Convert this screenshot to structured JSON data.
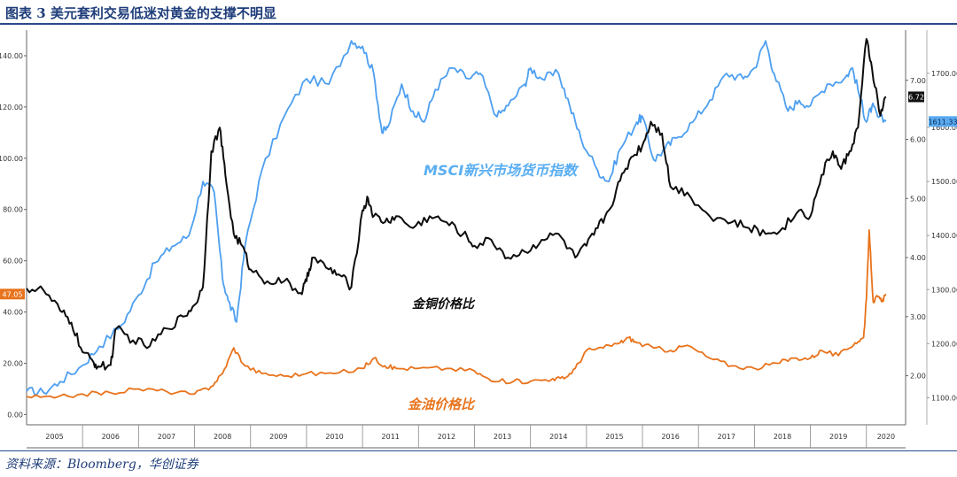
{
  "header": {
    "title": "图表 3 美元套利交易低迷对黄金的支撑不明显"
  },
  "footer": {
    "source": "资料来源：Bloomberg，华创证券"
  },
  "chart_data": {
    "type": "line",
    "title": "图表 3 美元套利交易低迷对黄金的支撑不明显",
    "xlabel": "",
    "ylabel": "",
    "x_ticks": [
      "2005",
      "2006",
      "2007",
      "2008",
      "2009",
      "2010",
      "2011",
      "2012",
      "2013",
      "2014",
      "2015",
      "2016",
      "2017",
      "2018",
      "2019",
      "2020"
    ],
    "xlim": [
      2005.0,
      2020.7
    ],
    "grid": false,
    "y_left": {
      "lim": [
        -4,
        150
      ],
      "ticks": [
        "0.00",
        "20.00",
        "40.00",
        "60.00",
        "80.00",
        "100.00",
        "120.00",
        "140.00"
      ],
      "values": [
        0,
        20,
        40,
        60,
        80,
        100,
        120,
        140
      ]
    },
    "y_right_inner": {
      "lim": [
        1.17,
        7.85
      ],
      "ticks": [
        "2.00",
        "3.00",
        "4.00",
        "5.00",
        "6.00",
        "7.00"
      ],
      "values": [
        2,
        3,
        4,
        5,
        6,
        7
      ]
    },
    "y_right_outer": {
      "lim": [
        1050,
        1780
      ],
      "ticks": [
        "1100.00",
        "1200.00",
        "1300.00",
        "1400.00",
        "1500.00",
        "1600.00",
        "1700.00"
      ],
      "values": [
        1100,
        1200,
        1300,
        1400,
        1500,
        1600,
        1700
      ]
    },
    "last_value_flags": [
      {
        "series": "金油价格比",
        "text": "47.05",
        "color": "#e8731c",
        "side": "left"
      },
      {
        "series": "金铜价格比",
        "text": "6.72",
        "color": "#111111",
        "side": "right"
      },
      {
        "series": "MSCI新兴市场货币指数",
        "text": "1611.33",
        "color": "#5aaaf0",
        "side": "right"
      }
    ],
    "series": [
      {
        "name": "MSCI新兴市场货币指数",
        "label": "MSCI新兴市场货币指数",
        "axis": "y_right_outer",
        "color": "#4d9ff0",
        "label_color": "#5aaef2",
        "x": [
          2005.0,
          2005.3,
          2005.6,
          2006.0,
          2006.3,
          2006.7,
          2007.0,
          2007.3,
          2007.6,
          2007.9,
          2008.15,
          2008.35,
          2008.5,
          2008.6,
          2008.75,
          2008.9,
          2009.2,
          2009.6,
          2010.0,
          2010.4,
          2010.8,
          2011.0,
          2011.2,
          2011.35,
          2011.45,
          2011.7,
          2011.9,
          2012.1,
          2012.3,
          2012.6,
          2012.9,
          2013.1,
          2013.4,
          2013.6,
          2013.9,
          2014.0,
          2014.2,
          2014.5,
          2014.7,
          2014.9,
          2015.2,
          2015.4,
          2015.6,
          2015.9,
          2016.0,
          2016.2,
          2016.4,
          2016.6,
          2016.9,
          2017.2,
          2017.5,
          2017.8,
          2018.0,
          2018.2,
          2018.35,
          2018.6,
          2018.8,
          2019.0,
          2019.3,
          2019.6,
          2019.75,
          2019.9,
          2020.0,
          2020.1,
          2020.2,
          2020.35
        ],
        "values": [
          1112,
          1110,
          1130,
          1160,
          1195,
          1235,
          1290,
          1350,
          1380,
          1400,
          1500,
          1480,
          1320,
          1280,
          1240,
          1380,
          1520,
          1620,
          1690,
          1680,
          1760,
          1750,
          1700,
          1590,
          1600,
          1680,
          1630,
          1610,
          1670,
          1710,
          1690,
          1700,
          1620,
          1640,
          1680,
          1710,
          1690,
          1700,
          1640,
          1580,
          1520,
          1500,
          1560,
          1610,
          1620,
          1540,
          1560,
          1580,
          1610,
          1650,
          1700,
          1690,
          1710,
          1760,
          1700,
          1630,
          1650,
          1640,
          1680,
          1690,
          1710,
          1650,
          1610,
          1640,
          1620,
          1611
        ]
      },
      {
        "name": "金铜价格比",
        "label": "金铜价格比",
        "axis": "y_right_inner",
        "color": "#0d0d0d",
        "label_color": "#0d0d0d",
        "x": [
          2005.0,
          2005.3,
          2005.6,
          2005.8,
          2006.0,
          2006.2,
          2006.3,
          2006.5,
          2006.6,
          2006.9,
          2007.2,
          2007.5,
          2007.8,
          2008.0,
          2008.15,
          2008.3,
          2008.45,
          2008.55,
          2008.7,
          2008.85,
          2009.0,
          2009.3,
          2009.6,
          2009.9,
          2010.0,
          2010.1,
          2010.4,
          2010.6,
          2010.8,
          2011.0,
          2011.1,
          2011.2,
          2011.4,
          2011.6,
          2011.9,
          2012.2,
          2012.5,
          2012.8,
          2013.0,
          2013.3,
          2013.6,
          2013.9,
          2014.2,
          2014.5,
          2014.8,
          2015.0,
          2015.2,
          2015.4,
          2015.6,
          2015.8,
          2016.0,
          2016.15,
          2016.35,
          2016.5,
          2016.8,
          2017.2,
          2017.6,
          2017.9,
          2018.2,
          2018.5,
          2018.8,
          2019.0,
          2019.2,
          2019.4,
          2019.55,
          2019.7,
          2019.85,
          2020.0,
          2020.1,
          2020.25,
          2020.35
        ],
        "values": [
          3.48,
          3.45,
          3.1,
          2.9,
          2.4,
          2.22,
          2.15,
          2.18,
          2.8,
          2.6,
          2.5,
          2.8,
          3.0,
          3.2,
          3.5,
          5.8,
          6.2,
          5.4,
          4.4,
          4.2,
          3.8,
          3.6,
          3.6,
          3.4,
          3.6,
          4.0,
          3.8,
          3.7,
          3.5,
          4.8,
          5.0,
          4.7,
          4.6,
          4.7,
          4.5,
          4.7,
          4.6,
          4.4,
          4.2,
          4.3,
          4.0,
          4.1,
          4.3,
          4.4,
          4.0,
          4.2,
          4.5,
          4.8,
          5.3,
          5.7,
          5.9,
          6.3,
          6.1,
          5.2,
          5.1,
          4.7,
          4.6,
          4.5,
          4.4,
          4.5,
          4.8,
          4.7,
          5.4,
          5.8,
          5.5,
          5.8,
          6.2,
          7.7,
          7.2,
          6.4,
          6.72
        ]
      },
      {
        "name": "金油价格比",
        "label": "金油价格比",
        "axis": "y_left",
        "color": "#e8731c",
        "label_color": "#e8731c",
        "x": [
          2005.0,
          2005.5,
          2006.0,
          2006.5,
          2007.0,
          2007.5,
          2008.0,
          2008.3,
          2008.5,
          2008.7,
          2008.9,
          2009.2,
          2009.6,
          2010.0,
          2010.5,
          2011.0,
          2011.2,
          2011.4,
          2011.6,
          2012.0,
          2012.5,
          2013.0,
          2013.3,
          2013.7,
          2014.0,
          2014.4,
          2014.6,
          2014.8,
          2015.0,
          2015.3,
          2015.6,
          2015.75,
          2015.9,
          2016.2,
          2016.5,
          2016.8,
          2017.2,
          2017.6,
          2018.0,
          2018.4,
          2018.7,
          2019.0,
          2019.2,
          2019.5,
          2019.8,
          2019.95,
          2020.0,
          2020.05,
          2020.12,
          2020.2,
          2020.28,
          2020.35
        ],
        "values": [
          7,
          6.5,
          8,
          8.5,
          10,
          9,
          8,
          11,
          16,
          26,
          19,
          16,
          15,
          16,
          16,
          18,
          22,
          19,
          18,
          18,
          18,
          17,
          13,
          13,
          13,
          14,
          14,
          18,
          25,
          26,
          28,
          30,
          28,
          26,
          25,
          27,
          22,
          19,
          18,
          20,
          22,
          22,
          25,
          23,
          28,
          30,
          45,
          72,
          44,
          46,
          44,
          47
        ]
      }
    ]
  }
}
